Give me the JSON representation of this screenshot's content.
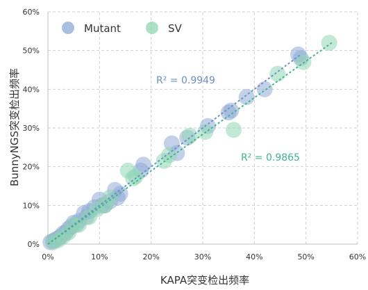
{
  "chart_data": {
    "type": "scatter",
    "title": "",
    "xlabel": "KAPA突变检出频率",
    "ylabel": "BunnyNGS突变检出频率",
    "xlim": [
      0,
      60
    ],
    "ylim": [
      0,
      60
    ],
    "x_ticks": [
      "0%",
      "10%",
      "20%",
      "30%",
      "40%",
      "50%",
      "60%"
    ],
    "y_ticks": [
      "0%",
      "10%",
      "20%",
      "30%",
      "40%",
      "50%",
      "60%"
    ],
    "grid": true,
    "legend_position": "top-left",
    "series": [
      {
        "name": "Mutant",
        "color": "#8fa9d6",
        "r2_label": "R² = 0.9949",
        "trend": [
          [
            0,
            0
          ],
          [
            49,
            49
          ]
        ],
        "points": [
          [
            0.5,
            0.5
          ],
          [
            1,
            0.8
          ],
          [
            1.5,
            1.2
          ],
          [
            2,
            1.5
          ],
          [
            2.5,
            2
          ],
          [
            3,
            2.8
          ],
          [
            3.5,
            3
          ],
          [
            4,
            4
          ],
          [
            4.5,
            4.5
          ],
          [
            5,
            5.5
          ],
          [
            5.5,
            5
          ],
          [
            6,
            6
          ],
          [
            7,
            8
          ],
          [
            7.5,
            7
          ],
          [
            8,
            8.5
          ],
          [
            9,
            9.5
          ],
          [
            10,
            11.5
          ],
          [
            10.5,
            10
          ],
          [
            11,
            10
          ],
          [
            12,
            11
          ],
          [
            13,
            14
          ],
          [
            13.5,
            12
          ],
          [
            14,
            13
          ],
          [
            18,
            19
          ],
          [
            18.5,
            20.5
          ],
          [
            24,
            26
          ],
          [
            25,
            23.5
          ],
          [
            27,
            27.5
          ],
          [
            31,
            30.5
          ],
          [
            35,
            34
          ],
          [
            35.5,
            34.5
          ],
          [
            38.5,
            38
          ],
          [
            42,
            40
          ],
          [
            48.5,
            49
          ],
          [
            49,
            48
          ]
        ]
      },
      {
        "name": "SV",
        "color": "#8fd6b4",
        "r2_label": "R² = 0.9865",
        "trend": [
          [
            0,
            0
          ],
          [
            55,
            52
          ]
        ],
        "points": [
          [
            1,
            0.5
          ],
          [
            2,
            1
          ],
          [
            3,
            2
          ],
          [
            4,
            3
          ],
          [
            5,
            5
          ],
          [
            6,
            5
          ],
          [
            8,
            7
          ],
          [
            9.5,
            9
          ],
          [
            11,
            10
          ],
          [
            12,
            12
          ],
          [
            15.5,
            19
          ],
          [
            16.5,
            17
          ],
          [
            17,
            17.5
          ],
          [
            22.5,
            21.5
          ],
          [
            23.5,
            23
          ],
          [
            27.5,
            28
          ],
          [
            30.5,
            29
          ],
          [
            36,
            29.5
          ],
          [
            44.5,
            44
          ],
          [
            49.5,
            47
          ],
          [
            54.5,
            52
          ]
        ]
      }
    ]
  }
}
